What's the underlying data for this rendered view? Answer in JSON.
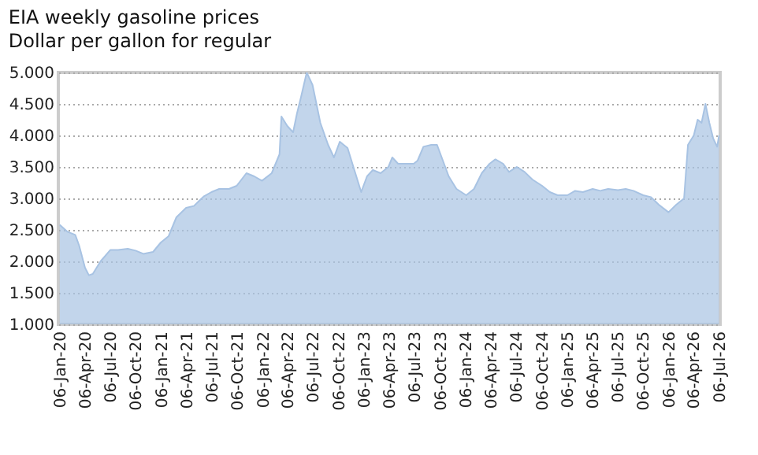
{
  "chart_data": {
    "type": "area",
    "title": "EIA weekly gasoline prices",
    "subtitle": "Dollar per gallon for regular",
    "x": [
      "2020-01-06",
      "2020-02-03",
      "2020-03-02",
      "2020-03-16",
      "2020-04-06",
      "2020-04-20",
      "2020-05-04",
      "2020-06-01",
      "2020-07-06",
      "2020-08-03",
      "2020-09-07",
      "2020-10-05",
      "2020-11-02",
      "2020-12-07",
      "2021-01-04",
      "2021-02-01",
      "2021-03-01",
      "2021-04-05",
      "2021-05-03",
      "2021-06-07",
      "2021-07-05",
      "2021-08-02",
      "2021-09-06",
      "2021-10-04",
      "2021-11-08",
      "2021-12-06",
      "2022-01-03",
      "2022-02-07",
      "2022-03-07",
      "2022-03-14",
      "2022-04-04",
      "2022-04-25",
      "2022-05-09",
      "2022-05-23",
      "2022-06-13",
      "2022-07-04",
      "2022-08-01",
      "2022-08-29",
      "2022-09-19",
      "2022-10-10",
      "2022-11-07",
      "2022-12-05",
      "2022-12-26",
      "2023-01-16",
      "2023-02-06",
      "2023-03-06",
      "2023-04-03",
      "2023-04-17",
      "2023-05-08",
      "2023-06-05",
      "2023-07-03",
      "2023-07-17",
      "2023-08-07",
      "2023-09-04",
      "2023-09-25",
      "2023-10-16",
      "2023-11-06",
      "2023-12-04",
      "2024-01-08",
      "2024-02-05",
      "2024-03-04",
      "2024-04-01",
      "2024-04-22",
      "2024-05-20",
      "2024-06-10",
      "2024-07-08",
      "2024-08-05",
      "2024-09-02",
      "2024-10-07",
      "2024-11-04",
      "2024-12-02",
      "2025-01-06",
      "2025-02-03",
      "2025-03-03",
      "2025-04-07",
      "2025-05-05",
      "2025-06-02",
      "2025-07-07",
      "2025-08-04",
      "2025-09-01",
      "2025-10-06",
      "2025-11-03",
      "2025-12-01",
      "2026-01-05",
      "2026-02-02",
      "2026-03-02",
      "2026-03-16",
      "2026-04-06",
      "2026-04-20",
      "2026-05-04",
      "2026-05-18",
      "2026-06-01",
      "2026-06-15",
      "2026-06-29",
      "2026-07-06"
    ],
    "series": [
      {
        "color": "#a8c3e3",
        "values": [
          2.58,
          2.47,
          2.42,
          2.25,
          1.9,
          1.78,
          1.8,
          2.0,
          2.18,
          2.18,
          2.2,
          2.17,
          2.12,
          2.15,
          2.3,
          2.4,
          2.7,
          2.85,
          2.88,
          3.03,
          3.1,
          3.15,
          3.15,
          3.2,
          3.4,
          3.35,
          3.28,
          3.4,
          3.7,
          4.3,
          4.15,
          4.05,
          4.35,
          4.6,
          5.0,
          4.8,
          4.2,
          3.85,
          3.65,
          3.9,
          3.8,
          3.4,
          3.1,
          3.35,
          3.45,
          3.4,
          3.5,
          3.65,
          3.55,
          3.55,
          3.55,
          3.6,
          3.82,
          3.85,
          3.85,
          3.6,
          3.35,
          3.15,
          3.05,
          3.15,
          3.4,
          3.55,
          3.62,
          3.55,
          3.42,
          3.5,
          3.42,
          3.3,
          3.2,
          3.1,
          3.05,
          3.05,
          3.12,
          3.1,
          3.15,
          3.12,
          3.15,
          3.13,
          3.15,
          3.12,
          3.05,
          3.02,
          2.9,
          2.78,
          2.9,
          3.0,
          3.85,
          4.0,
          4.25,
          4.2,
          4.5,
          4.2,
          3.95,
          3.82,
          4.0
        ]
      }
    ],
    "xlim": [
      "2020-01-01",
      "2026-07-10"
    ],
    "xticks": [
      {
        "value": "2020-01-06",
        "label": "06-Jan-20"
      },
      {
        "value": "2020-04-06",
        "label": "06-Apr-20"
      },
      {
        "value": "2020-07-06",
        "label": "06-Jul-20"
      },
      {
        "value": "2020-10-06",
        "label": "06-Oct-20"
      },
      {
        "value": "2021-01-06",
        "label": "06-Jan-21"
      },
      {
        "value": "2021-04-06",
        "label": "06-Apr-21"
      },
      {
        "value": "2021-07-06",
        "label": "06-Jul-21"
      },
      {
        "value": "2021-10-06",
        "label": "06-Oct-21"
      },
      {
        "value": "2022-01-06",
        "label": "06-Jan-22"
      },
      {
        "value": "2022-04-06",
        "label": "06-Apr-22"
      },
      {
        "value": "2022-07-06",
        "label": "06-Jul-22"
      },
      {
        "value": "2022-10-06",
        "label": "06-Oct-22"
      },
      {
        "value": "2023-01-06",
        "label": "06-Jan-23"
      },
      {
        "value": "2023-04-06",
        "label": "06-Apr-23"
      },
      {
        "value": "2023-07-06",
        "label": "06-Jul-23"
      },
      {
        "value": "2023-10-06",
        "label": "06-Oct-23"
      },
      {
        "value": "2024-01-06",
        "label": "06-Jan-24"
      },
      {
        "value": "2024-04-06",
        "label": "06-Apr-24"
      },
      {
        "value": "2024-07-06",
        "label": "06-Jul-24"
      },
      {
        "value": "2024-10-06",
        "label": "06-Oct-24"
      },
      {
        "value": "2025-01-06",
        "label": "06-Jan-25"
      },
      {
        "value": "2025-04-06",
        "label": "06-Apr-25"
      },
      {
        "value": "2025-07-06",
        "label": "06-Jul-25"
      },
      {
        "value": "2025-10-06",
        "label": "06-Oct-25"
      },
      {
        "value": "2026-01-06",
        "label": "06-Jan-26"
      },
      {
        "value": "2026-04-06",
        "label": "06-Apr-26"
      },
      {
        "value": "2026-07-06",
        "label": "06-Jul-26"
      }
    ],
    "ylim": [
      1,
      5
    ],
    "yticks": [
      {
        "value": 1,
        "label": "1.000"
      },
      {
        "value": 1.5,
        "label": "1.500"
      },
      {
        "value": 2,
        "label": "2.000"
      },
      {
        "value": 2.5,
        "label": "2.500"
      },
      {
        "value": 3,
        "label": "3.000"
      },
      {
        "value": 3.5,
        "label": "3.500"
      },
      {
        "value": 4,
        "label": "4.000"
      },
      {
        "value": 4.5,
        "label": "4.500"
      },
      {
        "value": 5,
        "label": "5.000"
      }
    ],
    "grid": "y"
  }
}
